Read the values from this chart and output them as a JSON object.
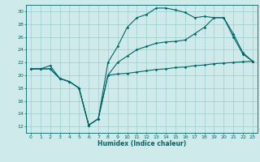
{
  "xlabel": "Humidex (Indice chaleur)",
  "background_color": "#ceeaea",
  "grid_color": "#9ecece",
  "line_color": "#006666",
  "xlim": [
    -0.5,
    23.5
  ],
  "ylim": [
    11,
    31
  ],
  "yticks": [
    12,
    14,
    16,
    18,
    20,
    22,
    24,
    26,
    28,
    30
  ],
  "xticks": [
    0,
    1,
    2,
    3,
    4,
    5,
    6,
    7,
    8,
    9,
    10,
    11,
    12,
    13,
    14,
    15,
    16,
    17,
    18,
    19,
    20,
    21,
    22,
    23
  ],
  "line1_x": [
    0,
    1,
    2,
    3,
    4,
    5,
    6,
    7,
    8,
    9,
    10,
    11,
    12,
    13,
    14,
    15,
    16,
    17,
    18,
    19,
    20,
    21,
    22,
    23
  ],
  "line1_y": [
    21.0,
    21.0,
    21.0,
    19.5,
    19.0,
    18.0,
    12.2,
    13.2,
    20.0,
    20.2,
    20.3,
    20.5,
    20.7,
    20.9,
    21.0,
    21.2,
    21.3,
    21.5,
    21.6,
    21.8,
    21.9,
    22.0,
    22.1,
    22.2
  ],
  "line2_x": [
    0,
    1,
    2,
    3,
    4,
    5,
    6,
    7,
    8,
    9,
    10,
    11,
    12,
    13,
    14,
    15,
    16,
    17,
    18,
    19,
    20,
    21,
    22,
    23
  ],
  "line2_y": [
    21.0,
    21.0,
    21.0,
    19.5,
    19.0,
    18.0,
    12.2,
    13.2,
    20.0,
    22.0,
    23.0,
    24.0,
    24.5,
    25.0,
    25.2,
    25.3,
    25.5,
    26.5,
    27.5,
    29.0,
    29.0,
    26.5,
    23.5,
    22.2
  ],
  "line3_x": [
    0,
    1,
    2,
    3,
    4,
    5,
    6,
    7,
    8,
    9,
    10,
    11,
    12,
    13,
    14,
    15,
    16,
    17,
    18,
    19,
    20,
    21,
    22,
    23
  ],
  "line3_y": [
    21.0,
    21.0,
    21.5,
    19.5,
    19.0,
    18.0,
    12.2,
    13.2,
    22.0,
    24.5,
    27.5,
    29.0,
    29.5,
    30.5,
    30.5,
    30.2,
    29.8,
    29.0,
    29.2,
    29.0,
    29.0,
    26.0,
    23.3,
    22.2
  ],
  "tick_labelsize": 4.5,
  "xlabel_fontsize": 5.5,
  "marker_size": 1.8,
  "linewidth": 0.8
}
